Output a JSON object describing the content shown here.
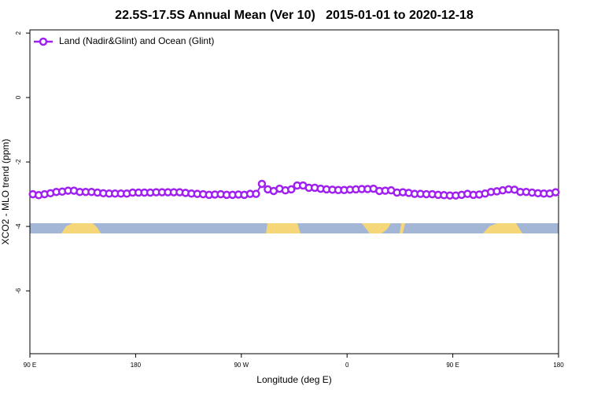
{
  "chart_data": {
    "type": "line",
    "title": "22.5S-17.5S Annual Mean (Ver 10)   2015-01-01 to 2020-12-18",
    "x_label": "Longitude (deg E)",
    "y_label": "XCO2 - MLO trend (ppm)",
    "x": [
      92.5,
      97.5,
      102.5,
      107.5,
      112.5,
      117.5,
      122.5,
      127.5,
      132.5,
      137.5,
      142.5,
      147.5,
      152.5,
      157.5,
      162.5,
      167.5,
      172.5,
      177.5,
      182.5,
      187.5,
      192.5,
      197.5,
      202.5,
      207.5,
      212.5,
      217.5,
      222.5,
      227.5,
      232.5,
      237.5,
      242.5,
      247.5,
      252.5,
      257.5,
      262.5,
      267.5,
      272.5,
      277.5,
      282.5,
      287.5,
      292.5,
      297.5,
      302.5,
      307.5,
      312.5,
      317.5,
      322.5,
      327.5,
      332.5,
      337.5,
      342.5,
      347.5,
      352.5,
      357.5,
      362.5,
      367.5,
      372.5,
      377.5,
      382.5,
      387.5,
      392.5,
      397.5,
      402.5,
      407.5,
      412.5,
      417.5,
      422.5,
      427.5,
      432.5,
      437.5,
      442.5,
      447.5,
      452.5,
      457.5,
      462.5,
      467.5,
      472.5,
      477.5,
      482.5,
      487.5,
      492.5,
      497.5,
      502.5,
      507.5,
      512.5,
      517.5,
      522.5,
      527.5,
      532.5,
      537.5
    ],
    "series": [
      {
        "name": "Land (Nadir&Glint) and Ocean (Glint)",
        "color": "#a020f0",
        "values": [
          -3.0,
          -3.03,
          -3.0,
          -2.97,
          -2.93,
          -2.92,
          -2.89,
          -2.89,
          -2.93,
          -2.93,
          -2.93,
          -2.95,
          -2.97,
          -2.98,
          -2.98,
          -2.98,
          -2.98,
          -2.95,
          -2.95,
          -2.95,
          -2.95,
          -2.94,
          -2.94,
          -2.94,
          -2.94,
          -2.94,
          -2.96,
          -2.98,
          -2.99,
          -3.0,
          -3.02,
          -3.01,
          -3.0,
          -3.02,
          -3.02,
          -3.01,
          -3.02,
          -2.99,
          -2.99,
          -2.68,
          -2.85,
          -2.9,
          -2.83,
          -2.88,
          -2.85,
          -2.73,
          -2.73,
          -2.8,
          -2.8,
          -2.83,
          -2.85,
          -2.86,
          -2.87,
          -2.87,
          -2.86,
          -2.85,
          -2.84,
          -2.84,
          -2.83,
          -2.9,
          -2.89,
          -2.88,
          -2.95,
          -2.94,
          -2.96,
          -2.99,
          -2.99,
          -3.0,
          -3.0,
          -3.02,
          -3.03,
          -3.04,
          -3.04,
          -3.02,
          -2.99,
          -3.02,
          -3.01,
          -2.98,
          -2.93,
          -2.91,
          -2.88,
          -2.85,
          -2.86,
          -2.93,
          -2.93,
          -2.95,
          -2.97,
          -2.98,
          -2.98,
          -2.94
        ]
      }
    ],
    "xlim": [
      90,
      540
    ],
    "xticks": [
      {
        "value": 90,
        "label": "90 E"
      },
      180,
      {
        "value": 270,
        "label": "90 W"
      },
      {
        "value": 360,
        "label": "0"
      },
      {
        "value": 450,
        "label": "90 E"
      },
      {
        "value": 540,
        "label": "180"
      }
    ],
    "ylim": [
      -7.95,
      2.1
    ],
    "yticks": [
      -6,
      -4,
      -2,
      0,
      2
    ],
    "legend": "upper left"
  }
}
